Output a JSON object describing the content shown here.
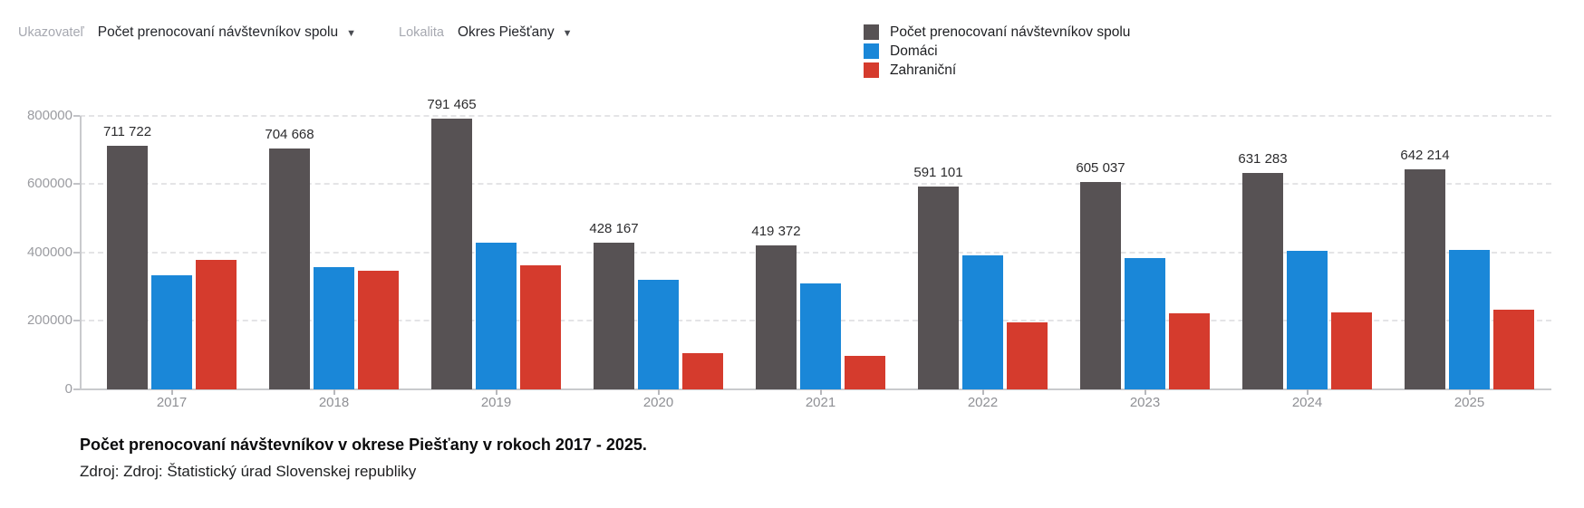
{
  "controls": {
    "indicator": {
      "label": "Ukazovateľ",
      "value": "Počet prenocovaní návštevníkov spolu"
    },
    "locality": {
      "label": "Lokalita",
      "value": "Okres Piešťany"
    }
  },
  "chart_data": {
    "type": "bar",
    "categories": [
      "2017",
      "2018",
      "2019",
      "2020",
      "2021",
      "2022",
      "2023",
      "2024",
      "2025"
    ],
    "series": [
      {
        "key": "total",
        "name": "Počet prenocovaní návštevníkov spolu",
        "color": "#575254",
        "values": [
          711722,
          704668,
          791465,
          428167,
          419372,
          591101,
          605037,
          631283,
          642214
        ],
        "labels": [
          "711 722",
          "704 668",
          "791 465",
          "428 167",
          "419 372",
          "591 101",
          "605 037",
          "631 283",
          "642 214"
        ]
      },
      {
        "key": "domestic",
        "name": "Domáci",
        "color": "#1a87d8",
        "values": [
          334000,
          358000,
          428000,
          321000,
          310000,
          392000,
          383000,
          405000,
          408000
        ]
      },
      {
        "key": "foreign",
        "name": "Zahraniční",
        "color": "#d53b2d",
        "values": [
          377000,
          346000,
          363000,
          107000,
          97000,
          197000,
          222000,
          226000,
          234000
        ]
      }
    ],
    "ylim": [
      0,
      800000
    ],
    "yticks": [
      0,
      200000,
      400000,
      600000,
      800000
    ],
    "ytick_labels": [
      "0",
      "200000",
      "400000",
      "600000",
      "800000"
    ],
    "grid": "dashed-horizontal",
    "legend_position": "top-right",
    "xlabel": "",
    "ylabel": ""
  },
  "caption": {
    "title": "Počet prenocovaní návštevníkov v okrese Piešťany v rokoch 2017 - 2025.",
    "source": "Zdroj: Zdroj: Štatistický úrad Slovenskej republiky"
  }
}
